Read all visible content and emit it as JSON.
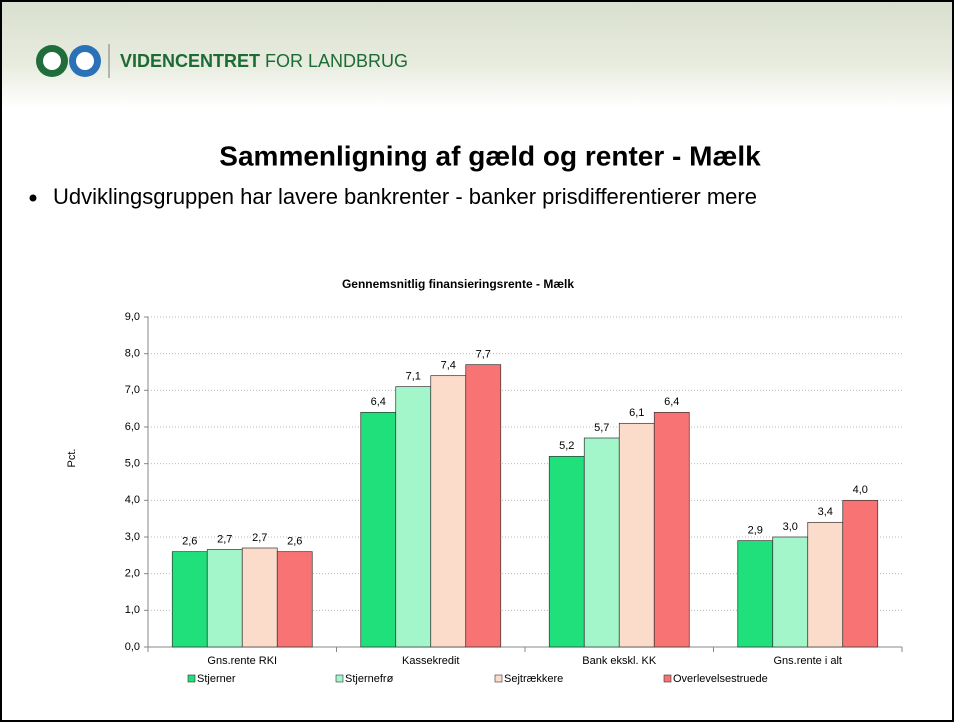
{
  "header": {
    "brand_bold": "VIDENCENTRET",
    "brand_rest": "FOR LANDBRUG"
  },
  "slide": {
    "title": "Sammenligning af gæld og renter - Mælk",
    "bullet": "Udviklingsgruppen har lavere bankrenter - banker prisdifferentierer mere"
  },
  "chart_data": {
    "type": "bar",
    "title": "Gennemsnitlig finansieringsrente - Mælk",
    "y_label": "Pct.",
    "categories": [
      "Gns.rente RKI",
      "Kassekredit",
      "Bank ekskl. KK",
      "Gns.rente i alt"
    ],
    "series": [
      {
        "name": "Stjerner",
        "color": "#1fe07a",
        "values": [
          2.6,
          6.4,
          5.2,
          2.9
        ],
        "value_labels": [
          "2,6",
          "6,4",
          "5,2",
          "2,9"
        ]
      },
      {
        "name": "Stjernefrø",
        "color": "#a3f5ca",
        "values": [
          2.66,
          7.1,
          5.7,
          3.0
        ],
        "value_labels": [
          "2,7",
          "7,1",
          "5,7",
          "3,0"
        ]
      },
      {
        "name": "Sejtrækkere",
        "color": "#fbdccb",
        "values": [
          2.7,
          7.4,
          6.1,
          3.4
        ],
        "value_labels": [
          "2,7",
          "7,4",
          "6,1",
          "3,4"
        ]
      },
      {
        "name": "Overlevelsestruede",
        "color": "#f87474",
        "values": [
          2.6,
          7.7,
          6.4,
          4.0
        ],
        "value_labels": [
          "2,6",
          "7,7",
          "6,4",
          "4,0"
        ]
      }
    ],
    "ylim": [
      0,
      9
    ],
    "yticks": [
      {
        "value": 0,
        "label": "0,0"
      },
      {
        "value": 1,
        "label": "1,0"
      },
      {
        "value": 2,
        "label": "2,0"
      },
      {
        "value": 3,
        "label": "3,0"
      },
      {
        "value": 4,
        "label": "4,0"
      },
      {
        "value": 5,
        "label": "5,0"
      },
      {
        "value": 6,
        "label": "6,0"
      },
      {
        "value": 7,
        "label": "7,0"
      },
      {
        "value": 8,
        "label": "8,0"
      },
      {
        "value": 9,
        "label": "9,0"
      }
    ],
    "grid": true,
    "legend": "bottom"
  }
}
